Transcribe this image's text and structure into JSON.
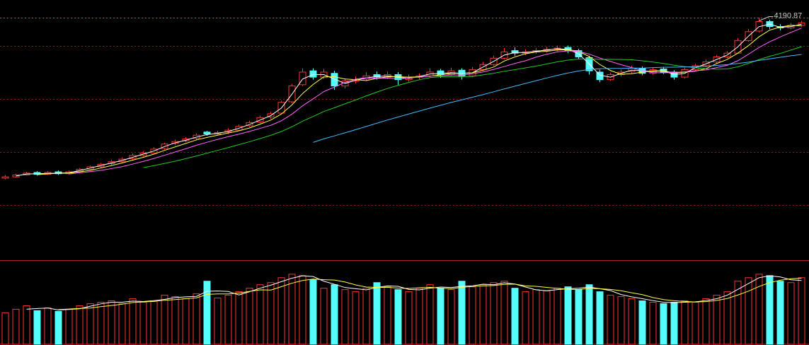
{
  "chart_data": {
    "type": "candlestick",
    "ohlc": [
      [
        2920,
        2945,
        2910,
        2930
      ],
      [
        2930,
        2955,
        2925,
        2945
      ],
      [
        2945,
        2970,
        2940,
        2960
      ],
      [
        2965,
        2975,
        2940,
        2950
      ],
      [
        2950,
        2975,
        2945,
        2965
      ],
      [
        2970,
        2980,
        2945,
        2955
      ],
      [
        2955,
        2980,
        2950,
        2970
      ],
      [
        2970,
        3000,
        2965,
        2990
      ],
      [
        2990,
        3020,
        2985,
        3010
      ],
      [
        3010,
        3040,
        3000,
        3030
      ],
      [
        3035,
        3065,
        3025,
        3050
      ],
      [
        3050,
        3085,
        3045,
        3070
      ],
      [
        3075,
        3115,
        3065,
        3100
      ],
      [
        3100,
        3135,
        3090,
        3120
      ],
      [
        3120,
        3165,
        3115,
        3150
      ],
      [
        3155,
        3200,
        3145,
        3190
      ],
      [
        3195,
        3225,
        3180,
        3210
      ],
      [
        3215,
        3245,
        3205,
        3230
      ],
      [
        3235,
        3275,
        3225,
        3260
      ],
      [
        3285,
        3295,
        3255,
        3270
      ],
      [
        3270,
        3295,
        3260,
        3280
      ],
      [
        3285,
        3315,
        3270,
        3300
      ],
      [
        3300,
        3345,
        3295,
        3330
      ],
      [
        3335,
        3375,
        3325,
        3360
      ],
      [
        3365,
        3415,
        3355,
        3400
      ],
      [
        3405,
        3445,
        3390,
        3430
      ],
      [
        3435,
        3535,
        3430,
        3520
      ],
      [
        3525,
        3665,
        3515,
        3650
      ],
      [
        3660,
        3790,
        3650,
        3760
      ],
      [
        3770,
        3790,
        3700,
        3720
      ],
      [
        3720,
        3785,
        3705,
        3760
      ],
      [
        3750,
        3770,
        3620,
        3650
      ],
      [
        3650,
        3710,
        3630,
        3690
      ],
      [
        3690,
        3725,
        3670,
        3700
      ],
      [
        3705,
        3760,
        3690,
        3730
      ],
      [
        3740,
        3765,
        3700,
        3720
      ],
      [
        3720,
        3765,
        3705,
        3740
      ],
      [
        3740,
        3760,
        3660,
        3700
      ],
      [
        3700,
        3740,
        3685,
        3720
      ],
      [
        3720,
        3750,
        3700,
        3730
      ],
      [
        3730,
        3790,
        3720,
        3760
      ],
      [
        3770,
        3785,
        3715,
        3740
      ],
      [
        3740,
        3795,
        3730,
        3770
      ],
      [
        3775,
        3790,
        3700,
        3730
      ],
      [
        3730,
        3800,
        3720,
        3780
      ],
      [
        3780,
        3840,
        3770,
        3820
      ],
      [
        3820,
        3890,
        3810,
        3870
      ],
      [
        3870,
        3950,
        3860,
        3920
      ],
      [
        3930,
        3955,
        3890,
        3910
      ],
      [
        3910,
        3940,
        3895,
        3920
      ],
      [
        3920,
        3950,
        3905,
        3930
      ],
      [
        3930,
        3960,
        3915,
        3940
      ],
      [
        3940,
        3970,
        3925,
        3950
      ],
      [
        3955,
        3970,
        3910,
        3930
      ],
      [
        3930,
        3945,
        3860,
        3880
      ],
      [
        3875,
        3890,
        3740,
        3770
      ],
      [
        3760,
        3780,
        3680,
        3700
      ],
      [
        3700,
        3755,
        3690,
        3740
      ],
      [
        3740,
        3780,
        3725,
        3760
      ],
      [
        3765,
        3810,
        3750,
        3790
      ],
      [
        3790,
        3805,
        3735,
        3750
      ],
      [
        3750,
        3795,
        3740,
        3780
      ],
      [
        3785,
        3800,
        3745,
        3760
      ],
      [
        3760,
        3775,
        3700,
        3720
      ],
      [
        3720,
        3795,
        3710,
        3780
      ],
      [
        3780,
        3825,
        3770,
        3810
      ],
      [
        3810,
        3860,
        3800,
        3840
      ],
      [
        3840,
        3895,
        3830,
        3880
      ],
      [
        3880,
        3925,
        3870,
        3910
      ],
      [
        3910,
        4030,
        3905,
        4010
      ],
      [
        4010,
        4100,
        4000,
        4080
      ],
      [
        4085,
        4190.87,
        4075,
        4160
      ],
      [
        4160,
        4175,
        4100,
        4120
      ],
      [
        4120,
        4140,
        4090,
        4110
      ],
      [
        4110,
        4150,
        4100,
        4130
      ],
      [
        4130,
        4165,
        4120,
        4150
      ]
    ],
    "volume": [
      45,
      50,
      55,
      48,
      52,
      47,
      50,
      55,
      58,
      60,
      62,
      58,
      65,
      60,
      62,
      70,
      68,
      65,
      72,
      90,
      66,
      70,
      75,
      80,
      85,
      88,
      95,
      100,
      98,
      92,
      80,
      85,
      78,
      75,
      80,
      88,
      82,
      78,
      75,
      80,
      85,
      80,
      78,
      90,
      82,
      85,
      88,
      90,
      80,
      75,
      78,
      76,
      80,
      82,
      78,
      85,
      75,
      70,
      68,
      65,
      62,
      60,
      58,
      60,
      62,
      60,
      65,
      70,
      75,
      90,
      95,
      100,
      98,
      90,
      88,
      95
    ],
    "up_color": "#ff3232",
    "down_color": "#54fcfc",
    "ylim": [
      2287,
      4331
    ],
    "vlim": [
      0,
      120
    ],
    "grid": true,
    "ygrid": [
      2707,
      3127,
      3547,
      3967
    ]
  }
}
